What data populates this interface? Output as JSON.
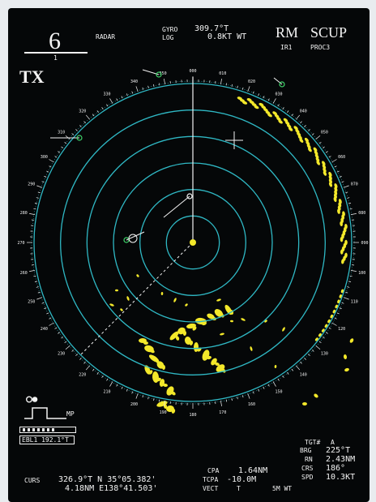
{
  "header": {
    "range_value": "6",
    "range_sub": "1",
    "mode_tx": "TX",
    "radar_label": "RADAR",
    "gyro_label": "GYRO",
    "gyro_value": "309.7°T",
    "log_label": "LOG",
    "log_value": "0.8KT WT",
    "rm_label": "RM",
    "scup_label": "SCUP",
    "ir_label": "IR1",
    "proc_label": "PROC3"
  },
  "left_panel": {
    "mp_label": "MP",
    "ebl_label": "EBL1 192.1°T"
  },
  "target": {
    "tgt_label": "TGT#",
    "tgt_id": "A",
    "brg_label": "BRG",
    "brg_value": "225°T",
    "rn_label": "RN",
    "rn_value": "2.43NM",
    "crs_label": "CRS",
    "crs_value": "186°",
    "spd_label": "SPD",
    "spd_value": "10.3KT",
    "cpa_label": "CPA",
    "cpa_value": "1.64NM",
    "tcpa_label": "TCPA",
    "tcpa_value": "-10.0M",
    "vect_label": "VECT",
    "vect_mode": "T",
    "vect_value": "5M WT"
  },
  "cursor": {
    "label": "CURS",
    "line1": "326.9°T N 35°05.382'",
    "line2": "4.18NM E138°41.503'"
  },
  "colors": {
    "ring": "#2fb8c4",
    "echo": "#f3e82a",
    "text": "#f3f3f3",
    "target_marker": "#3fd46a"
  },
  "scope": {
    "ring_count": 6,
    "bearing_tick_labels": [
      "000",
      "010",
      "020",
      "030",
      "040",
      "050",
      "060",
      "070",
      "080",
      "090",
      "100",
      "110",
      "120",
      "130",
      "140",
      "150",
      "160",
      "170",
      "180",
      "190",
      "200",
      "210",
      "220",
      "230",
      "240",
      "250",
      "260",
      "270",
      "280",
      "290",
      "300",
      "310",
      "320",
      "330",
      "340",
      "350"
    ]
  }
}
